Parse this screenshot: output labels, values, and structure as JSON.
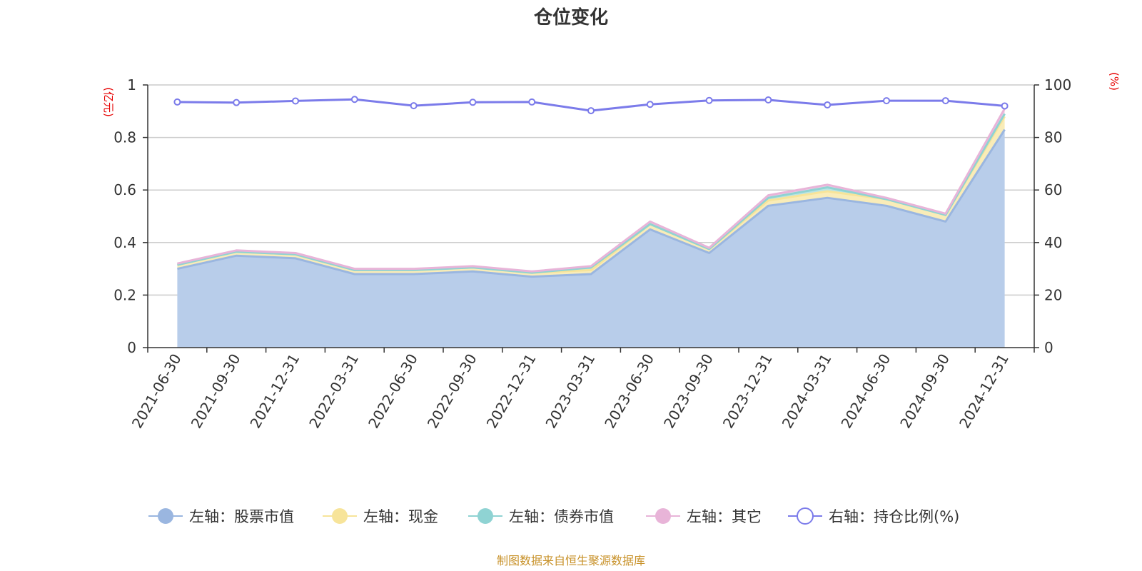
{
  "title": "仓位变化",
  "source": "制图数据来自恒生聚源数据库",
  "chart_data": {
    "type": "area",
    "categories": [
      "2021-06-30",
      "2021-09-30",
      "2021-12-31",
      "2022-03-31",
      "2022-06-30",
      "2022-09-30",
      "2022-12-31",
      "2023-03-31",
      "2023-06-30",
      "2023-09-30",
      "2023-12-31",
      "2024-03-31",
      "2024-06-30",
      "2024-09-30",
      "2024-12-31"
    ],
    "left_axis": {
      "unit": "(亿元)",
      "ylim": [
        0,
        1
      ],
      "ticks": [
        "0",
        "0.2",
        "0.4",
        "0.6",
        "0.8",
        "1"
      ]
    },
    "right_axis": {
      "unit": "(%)",
      "ylim": [
        0,
        100
      ],
      "ticks": [
        "0",
        "20",
        "40",
        "60",
        "80",
        "100"
      ]
    },
    "stacked": true,
    "series": [
      {
        "name": "左轴：股票市值",
        "axis": "left",
        "color": "#9ab6e0",
        "fill": "#b8cdea",
        "values": [
          0.3,
          0.35,
          0.34,
          0.28,
          0.28,
          0.29,
          0.27,
          0.28,
          0.45,
          0.36,
          0.54,
          0.57,
          0.54,
          0.48,
          0.83
        ]
      },
      {
        "name": "左轴：现金",
        "axis": "left",
        "color": "#f7e49a",
        "fill": "#f9ecb8",
        "values": [
          0.015,
          0.015,
          0.015,
          0.015,
          0.015,
          0.015,
          0.015,
          0.015,
          0.02,
          0.015,
          0.02,
          0.025,
          0.025,
          0.025,
          0.05
        ]
      },
      {
        "name": "左轴：债券市值",
        "axis": "left",
        "color": "#8fd3d3",
        "fill": "#b9e4e4",
        "values": [
          0.0,
          0.0,
          0.0,
          0.0,
          0.0,
          0.0,
          0.0,
          0.01,
          0.0,
          0.0,
          0.01,
          0.015,
          0.0,
          0.0,
          0.01
        ]
      },
      {
        "name": "左轴：其它",
        "axis": "left",
        "color": "#e8b4d8",
        "fill": "#f1d0e7",
        "values": [
          0.005,
          0.005,
          0.005,
          0.005,
          0.005,
          0.005,
          0.005,
          0.005,
          0.01,
          0.005,
          0.01,
          0.01,
          0.005,
          0.005,
          0.02
        ]
      },
      {
        "name": "右轴：持仓比例(%)",
        "axis": "right",
        "color": "#7b7bea",
        "values": [
          93.5,
          93.3,
          93.9,
          94.5,
          92.1,
          93.4,
          93.5,
          90.2,
          92.6,
          94.1,
          94.3,
          92.4,
          94.0,
          94.0,
          92.0
        ]
      }
    ],
    "grid": true,
    "legend_position": "bottom"
  }
}
